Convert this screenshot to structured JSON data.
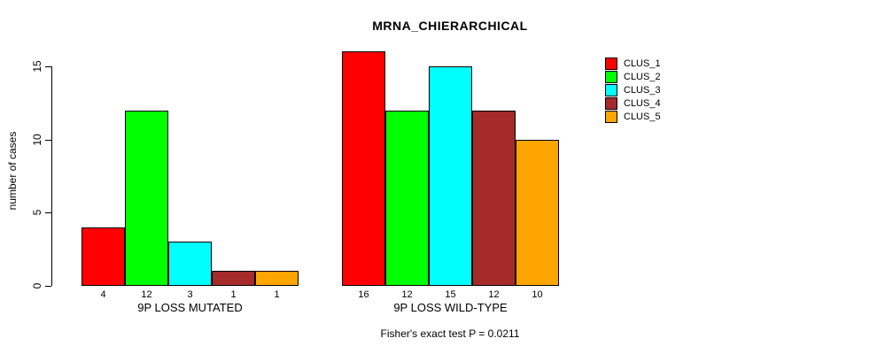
{
  "chart_data": {
    "type": "bar",
    "title": "MRNA_CHIERARCHICAL",
    "ylabel": "number of cases",
    "xlabel": "",
    "ylim": [
      0,
      15
    ],
    "yticks": [
      0,
      5,
      10,
      15
    ],
    "grid": false,
    "legend_position": "top-right",
    "bar_value_labels": true,
    "categories": [
      "9P LOSS MUTATED",
      "9P LOSS WILD-TYPE"
    ],
    "series": [
      {
        "name": "CLUS_1",
        "color": "#ff0000",
        "values": [
          4,
          16
        ]
      },
      {
        "name": "CLUS_2",
        "color": "#00ff00",
        "values": [
          12,
          12
        ]
      },
      {
        "name": "CLUS_3",
        "color": "#00ffff",
        "values": [
          3,
          15
        ]
      },
      {
        "name": "CLUS_4",
        "color": "#a52a2a",
        "values": [
          1,
          12
        ]
      },
      {
        "name": "CLUS_5",
        "color": "#ffa500",
        "values": [
          1,
          10
        ]
      }
    ],
    "annotation": "Fisher's exact test P = 0.0211"
  }
}
